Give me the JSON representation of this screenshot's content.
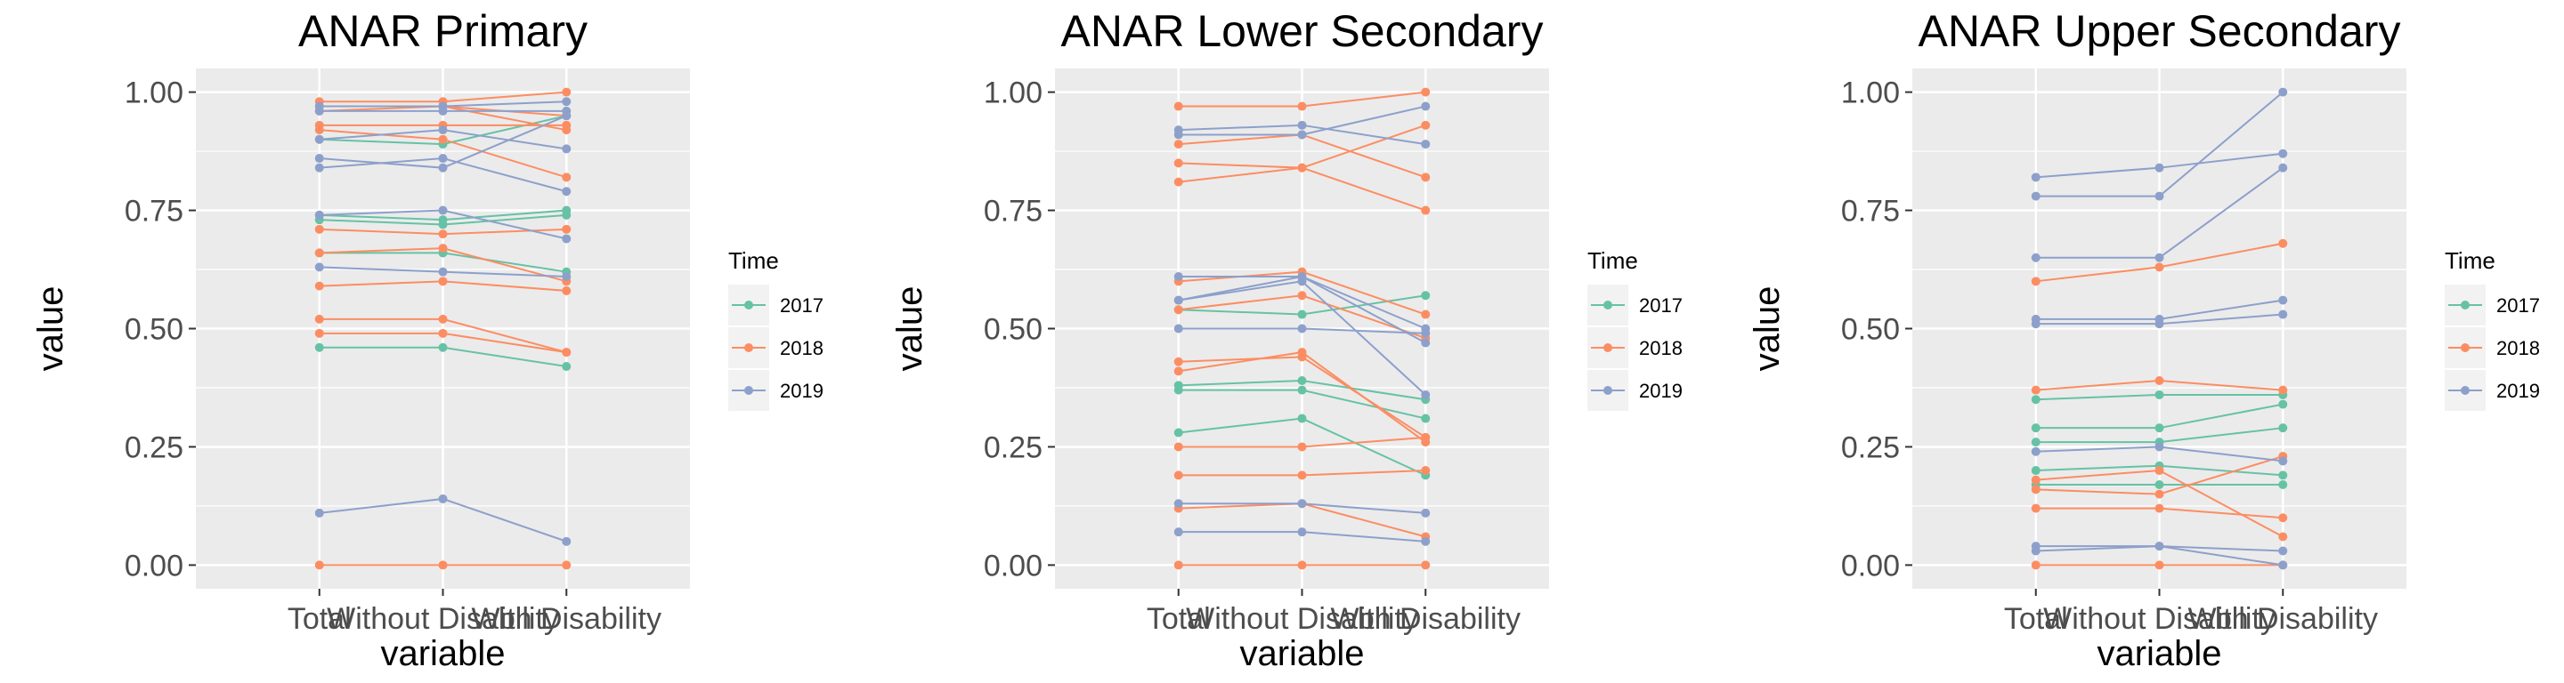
{
  "legend": {
    "title": "Time",
    "items": [
      {
        "label": "2017",
        "color": "#66c2a5"
      },
      {
        "label": "2018",
        "color": "#fc8d62"
      },
      {
        "label": "2019",
        "color": "#8da0cb"
      }
    ]
  },
  "chart_data": [
    {
      "type": "line",
      "title": "ANAR Primary",
      "xlabel": "variable",
      "ylabel": "value",
      "categories": [
        "Total",
        "Without Disability",
        "With Disability"
      ],
      "ylim": [
        -0.05,
        1.05
      ],
      "yticks": [
        "0.00",
        "0.25",
        "0.50",
        "0.75",
        "1.00"
      ],
      "grid": true,
      "legend_position": "right",
      "series": [
        {
          "group": "2017",
          "values": [
            0.9,
            0.89,
            0.95
          ]
        },
        {
          "group": "2017",
          "values": [
            0.74,
            0.73,
            0.75
          ]
        },
        {
          "group": "2017",
          "values": [
            0.73,
            0.72,
            0.74
          ]
        },
        {
          "group": "2017",
          "values": [
            0.66,
            0.66,
            0.62
          ]
        },
        {
          "group": "2017",
          "values": [
            0.46,
            0.46,
            0.42
          ]
        },
        {
          "group": "2018",
          "values": [
            0.98,
            0.98,
            1.0
          ]
        },
        {
          "group": "2018",
          "values": [
            0.97,
            0.97,
            0.95
          ]
        },
        {
          "group": "2018",
          "values": [
            0.96,
            0.97,
            0.92
          ]
        },
        {
          "group": "2018",
          "values": [
            0.93,
            0.93,
            0.93
          ]
        },
        {
          "group": "2018",
          "values": [
            0.92,
            0.9,
            0.82
          ]
        },
        {
          "group": "2018",
          "values": [
            0.71,
            0.7,
            0.71
          ]
        },
        {
          "group": "2018",
          "values": [
            0.66,
            0.67,
            0.6
          ]
        },
        {
          "group": "2018",
          "values": [
            0.59,
            0.6,
            0.58
          ]
        },
        {
          "group": "2018",
          "values": [
            0.52,
            0.52,
            0.45
          ]
        },
        {
          "group": "2018",
          "values": [
            0.49,
            0.49,
            0.45
          ]
        },
        {
          "group": "2018",
          "values": [
            0.0,
            0.0,
            0.0
          ]
        },
        {
          "group": "2019",
          "values": [
            0.97,
            0.97,
            0.98
          ]
        },
        {
          "group": "2019",
          "values": [
            0.96,
            0.96,
            0.96
          ]
        },
        {
          "group": "2019",
          "values": [
            0.9,
            0.92,
            0.88
          ]
        },
        {
          "group": "2019",
          "values": [
            0.86,
            0.84,
            0.95
          ]
        },
        {
          "group": "2019",
          "values": [
            0.84,
            0.86,
            0.79
          ]
        },
        {
          "group": "2019",
          "values": [
            0.74,
            0.75,
            0.69
          ]
        },
        {
          "group": "2019",
          "values": [
            0.63,
            0.62,
            0.61
          ]
        },
        {
          "group": "2019",
          "values": [
            0.11,
            0.14,
            0.05
          ]
        }
      ]
    },
    {
      "type": "line",
      "title": "ANAR Lower Secondary",
      "xlabel": "variable",
      "ylabel": "value",
      "categories": [
        "Total",
        "Without Disability",
        "With Disability"
      ],
      "ylim": [
        -0.05,
        1.05
      ],
      "yticks": [
        "0.00",
        "0.25",
        "0.50",
        "0.75",
        "1.00"
      ],
      "grid": true,
      "legend_position": "right",
      "series": [
        {
          "group": "2017",
          "values": [
            0.54,
            0.53,
            0.57
          ]
        },
        {
          "group": "2017",
          "values": [
            0.38,
            0.39,
            0.35
          ]
        },
        {
          "group": "2017",
          "values": [
            0.37,
            0.37,
            0.31
          ]
        },
        {
          "group": "2017",
          "values": [
            0.28,
            0.31,
            0.19
          ]
        },
        {
          "group": "2018",
          "values": [
            0.97,
            0.97,
            1.0
          ]
        },
        {
          "group": "2018",
          "values": [
            0.89,
            0.91,
            0.82
          ]
        },
        {
          "group": "2018",
          "values": [
            0.85,
            0.84,
            0.93
          ]
        },
        {
          "group": "2018",
          "values": [
            0.81,
            0.84,
            0.75
          ]
        },
        {
          "group": "2018",
          "values": [
            0.6,
            0.62,
            0.53
          ]
        },
        {
          "group": "2018",
          "values": [
            0.54,
            0.57,
            0.48
          ]
        },
        {
          "group": "2018",
          "values": [
            0.43,
            0.44,
            0.27
          ]
        },
        {
          "group": "2018",
          "values": [
            0.41,
            0.45,
            0.26
          ]
        },
        {
          "group": "2018",
          "values": [
            0.25,
            0.25,
            0.27
          ]
        },
        {
          "group": "2018",
          "values": [
            0.19,
            0.19,
            0.2
          ]
        },
        {
          "group": "2018",
          "values": [
            0.12,
            0.13,
            0.06
          ]
        },
        {
          "group": "2018",
          "values": [
            0.0,
            0.0,
            0.0
          ]
        },
        {
          "group": "2019",
          "values": [
            0.92,
            0.93,
            0.89
          ]
        },
        {
          "group": "2019",
          "values": [
            0.91,
            0.91,
            0.97
          ]
        },
        {
          "group": "2019",
          "values": [
            0.61,
            0.61,
            0.5
          ]
        },
        {
          "group": "2019",
          "values": [
            0.56,
            0.6,
            0.36
          ]
        },
        {
          "group": "2019",
          "values": [
            0.56,
            0.61,
            0.47
          ]
        },
        {
          "group": "2019",
          "values": [
            0.5,
            0.5,
            0.49
          ]
        },
        {
          "group": "2019",
          "values": [
            0.13,
            0.13,
            0.11
          ]
        },
        {
          "group": "2019",
          "values": [
            0.07,
            0.07,
            0.05
          ]
        }
      ]
    },
    {
      "type": "line",
      "title": "ANAR Upper Secondary",
      "xlabel": "variable",
      "ylabel": "value",
      "categories": [
        "Total",
        "Without Disability",
        "With Disability"
      ],
      "ylim": [
        -0.05,
        1.05
      ],
      "yticks": [
        "0.00",
        "0.25",
        "0.50",
        "0.75",
        "1.00"
      ],
      "grid": true,
      "legend_position": "right",
      "series": [
        {
          "group": "2017",
          "values": [
            0.35,
            0.36,
            0.36
          ]
        },
        {
          "group": "2017",
          "values": [
            0.29,
            0.29,
            0.34
          ]
        },
        {
          "group": "2017",
          "values": [
            0.26,
            0.26,
            0.29
          ]
        },
        {
          "group": "2017",
          "values": [
            0.2,
            0.21,
            0.19
          ]
        },
        {
          "group": "2017",
          "values": [
            0.17,
            0.17,
            0.17
          ]
        },
        {
          "group": "2018",
          "values": [
            0.6,
            0.63,
            0.68
          ]
        },
        {
          "group": "2018",
          "values": [
            0.37,
            0.39,
            0.37
          ]
        },
        {
          "group": "2018",
          "values": [
            0.18,
            0.2,
            0.06
          ]
        },
        {
          "group": "2018",
          "values": [
            0.16,
            0.15,
            0.23
          ]
        },
        {
          "group": "2018",
          "values": [
            0.12,
            0.12,
            0.1
          ]
        },
        {
          "group": "2018",
          "values": [
            0.0,
            0.0,
            0.0
          ]
        },
        {
          "group": "2019",
          "values": [
            0.82,
            0.84,
            0.87
          ]
        },
        {
          "group": "2019",
          "values": [
            0.78,
            0.78,
            1.0
          ]
        },
        {
          "group": "2019",
          "values": [
            0.65,
            0.65,
            0.84
          ]
        },
        {
          "group": "2019",
          "values": [
            0.52,
            0.52,
            0.56
          ]
        },
        {
          "group": "2019",
          "values": [
            0.51,
            0.51,
            0.53
          ]
        },
        {
          "group": "2019",
          "values": [
            0.24,
            0.25,
            0.22
          ]
        },
        {
          "group": "2019",
          "values": [
            0.04,
            0.04,
            0.03
          ]
        },
        {
          "group": "2019",
          "values": [
            0.03,
            0.04,
            0.0
          ]
        }
      ]
    }
  ]
}
